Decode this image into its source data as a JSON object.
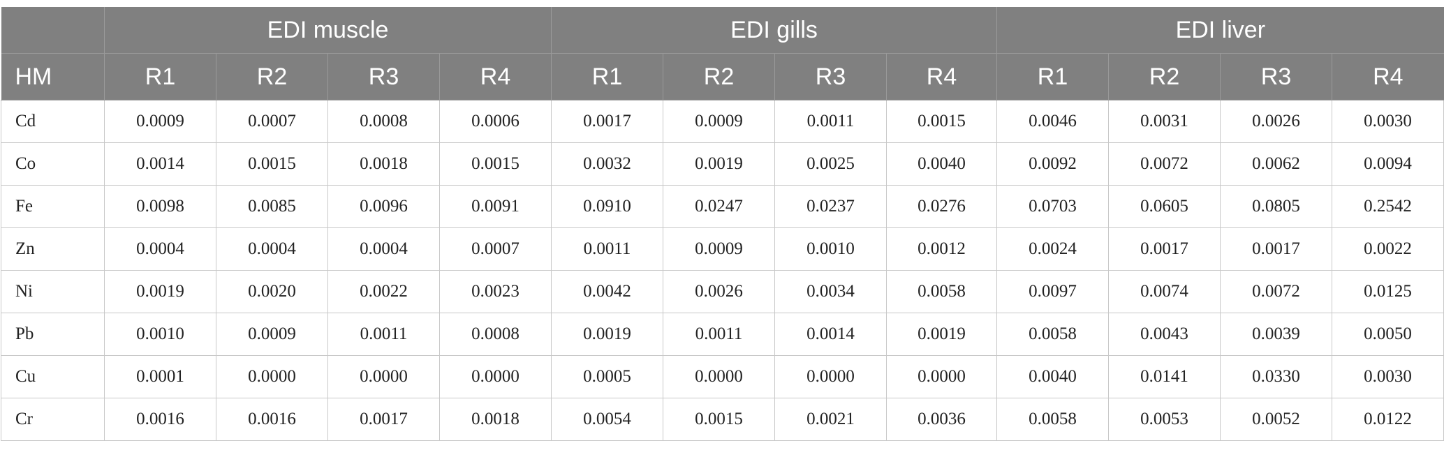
{
  "groups": [
    "EDI muscle",
    "EDI gills",
    "EDI liver"
  ],
  "columns": [
    "HM",
    "R1",
    "R2",
    "R3",
    "R4",
    "R1",
    "R2",
    "R3",
    "R4",
    "R1",
    "R2",
    "R3",
    "R4"
  ],
  "rows": [
    [
      "Cd",
      "0.0009",
      "0.0007",
      "0.0008",
      "0.0006",
      "0.0017",
      "0.0009",
      "0.0011",
      "0.0015",
      "0.0046",
      "0.0031",
      "0.0026",
      "0.0030"
    ],
    [
      "Co",
      "0.0014",
      "0.0015",
      "0.0018",
      "0.0015",
      "0.0032",
      "0.0019",
      "0.0025",
      "0.0040",
      "0.0092",
      "0.0072",
      "0.0062",
      "0.0094"
    ],
    [
      "Fe",
      "0.0098",
      "0.0085",
      "0.0096",
      "0.0091",
      "0.0910",
      "0.0247",
      "0.0237",
      "0.0276",
      "0.0703",
      "0.0605",
      "0.0805",
      "0.2542"
    ],
    [
      "Zn",
      "0.0004",
      "0.0004",
      "0.0004",
      "0.0007",
      "0.0011",
      "0.0009",
      "0.0010",
      "0.0012",
      "0.0024",
      "0.0017",
      "0.0017",
      "0.0022"
    ],
    [
      "Ni",
      "0.0019",
      "0.0020",
      "0.0022",
      "0.0023",
      "0.0042",
      "0.0026",
      "0.0034",
      "0.0058",
      "0.0097",
      "0.0074",
      "0.0072",
      "0.0125"
    ],
    [
      "Pb",
      "0.0010",
      "0.0009",
      "0.0011",
      "0.0008",
      "0.0019",
      "0.0011",
      "0.0014",
      "0.0019",
      "0.0058",
      "0.0043",
      "0.0039",
      "0.0050"
    ],
    [
      "Cu",
      "0.0001",
      "0.0000",
      "0.0000",
      "0.0000",
      "0.0005",
      "0.0000",
      "0.0000",
      "0.0000",
      "0.0040",
      "0.0141",
      "0.0330",
      "0.0030"
    ],
    [
      "Cr",
      "0.0016",
      "0.0016",
      "0.0017",
      "0.0018",
      "0.0054",
      "0.0015",
      "0.0021",
      "0.0036",
      "0.0058",
      "0.0053",
      "0.0052",
      "0.0122"
    ]
  ]
}
